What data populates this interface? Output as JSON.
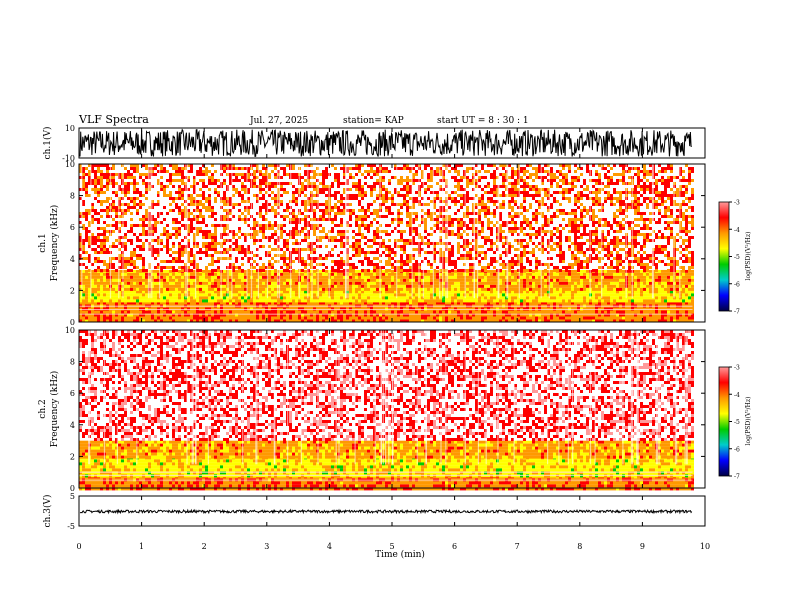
{
  "header": {
    "title": "VLF Spectra",
    "date": "Jul. 27, 2025",
    "station": "station= KAP",
    "start_ut": "start  UT =  8 : 30 : 1"
  },
  "panels": {
    "ch1_wave": {
      "ylabel": "ch.1(V)",
      "ymax": "10",
      "ymin": "-10"
    },
    "ch1_spec": {
      "ylabel_top": "ch.1",
      "ylabel": "Frequency (kHz)"
    },
    "ch2_spec": {
      "ylabel_top": "ch.2",
      "ylabel": "Frequency (kHz)"
    },
    "ch3_wave": {
      "ylabel": "ch.3(V)",
      "ymax": "5",
      "ymin": "-5"
    }
  },
  "xaxis": {
    "label": "Time (min)"
  },
  "colorbar": {
    "label": "log(PSD)(V²/Hz)",
    "ticks": [
      "-3",
      "-4",
      "-5",
      "-6",
      "-7"
    ],
    "colors": [
      "#ff9a9a",
      "#ff0000",
      "#ff9900",
      "#ffff00",
      "#00cc00",
      "#00cccc",
      "#0000ff",
      "#000044"
    ]
  },
  "chart_data": [
    {
      "type": "line",
      "title": "VLF Spectra",
      "xlabel": "Time (min)",
      "ylabel": "ch.1(V)",
      "xlim": [
        0,
        10
      ],
      "ylim": [
        -10,
        10
      ],
      "x_ticks": [
        0,
        1,
        2,
        3,
        4,
        5,
        6,
        7,
        8,
        9,
        10
      ],
      "y_ticks": [
        -10,
        10
      ],
      "data_extent_min": 9.8,
      "series": [
        {
          "amplitude_range": [
            -9,
            9
          ]
        }
      ]
    },
    {
      "type": "heatmap",
      "xlabel": "Time (min)",
      "ylabel": "Frequency (kHz)",
      "channel": "ch.1",
      "xlim": [
        0,
        10
      ],
      "ylim": [
        0,
        10
      ],
      "y_ticks": [
        0,
        2,
        4,
        6,
        8,
        10
      ],
      "data_extent_min": 9.8,
      "log_psd_range": [
        -7,
        -3
      ],
      "bands_khz": [
        {
          "from": 0,
          "to": 1.3,
          "level": -4
        },
        {
          "from": 1.3,
          "to": 2.0,
          "level": -4.6
        },
        {
          "from": 2.0,
          "to": 3.3,
          "level": -4.2
        },
        {
          "from": 3.3,
          "to": 10,
          "level": -3.8
        }
      ]
    },
    {
      "type": "heatmap",
      "xlabel": "Time (min)",
      "ylabel": "Frequency (kHz)",
      "channel": "ch.2",
      "xlim": [
        0,
        10
      ],
      "ylim": [
        0,
        10
      ],
      "y_ticks": [
        0,
        2,
        4,
        6,
        8,
        10
      ],
      "data_extent_min": 9.8,
      "log_psd_range": [
        -7,
        -3
      ],
      "bands_khz": [
        {
          "from": 0,
          "to": 0.8,
          "level": -4
        },
        {
          "from": 0.8,
          "to": 2.0,
          "level": -4.6
        },
        {
          "from": 2.0,
          "to": 3.0,
          "level": -4.2
        },
        {
          "from": 3.0,
          "to": 10,
          "level": -3.4
        }
      ]
    },
    {
      "type": "line",
      "xlabel": "Time (min)",
      "ylabel": "ch.3(V)",
      "xlim": [
        0,
        10
      ],
      "ylim": [
        -5,
        5
      ],
      "x_ticks": [
        0,
        1,
        2,
        3,
        4,
        5,
        6,
        7,
        8,
        9,
        10
      ],
      "y_ticks": [
        -5,
        5
      ],
      "data_extent_min": 9.8,
      "series": [
        {
          "amplitude_range": [
            -0.6,
            0.3
          ]
        }
      ]
    }
  ]
}
